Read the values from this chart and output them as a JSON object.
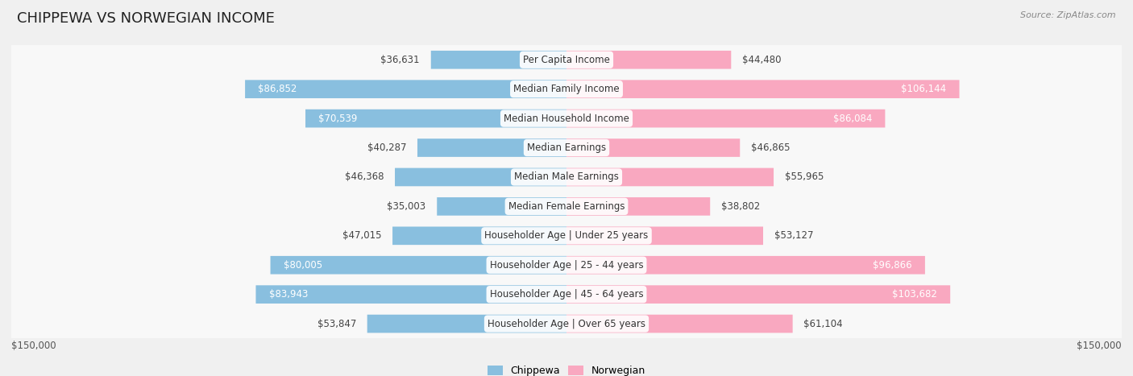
{
  "title": "CHIPPEWA VS NORWEGIAN INCOME",
  "source": "Source: ZipAtlas.com",
  "categories": [
    "Per Capita Income",
    "Median Family Income",
    "Median Household Income",
    "Median Earnings",
    "Median Male Earnings",
    "Median Female Earnings",
    "Householder Age | Under 25 years",
    "Householder Age | 25 - 44 years",
    "Householder Age | 45 - 64 years",
    "Householder Age | Over 65 years"
  ],
  "chippewa": [
    36631,
    86852,
    70539,
    40287,
    46368,
    35003,
    47015,
    80005,
    83943,
    53847
  ],
  "norwegian": [
    44480,
    106144,
    86084,
    46865,
    55965,
    38802,
    53127,
    96866,
    103682,
    61104
  ],
  "chippewa_color": "#89bfdf",
  "norwegian_color": "#f9a8c0",
  "axis_max": 150000,
  "bg_color": "#f0f0f0",
  "row_bg_even": "#ffffff",
  "row_bg_odd": "#f8f8f8",
  "label_fontsize": 8.5,
  "value_fontsize": 8.5,
  "title_fontsize": 13,
  "inside_threshold": 0.42
}
